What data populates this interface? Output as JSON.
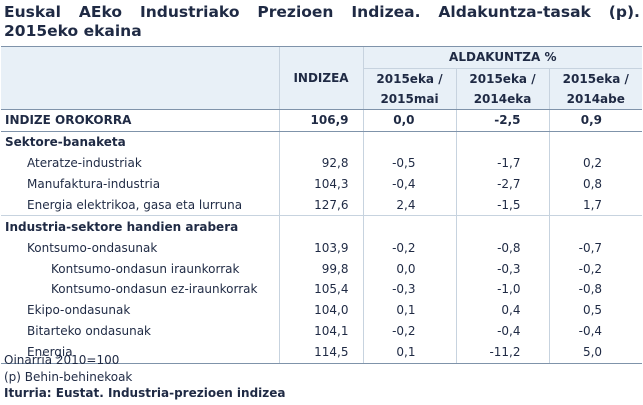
{
  "title": {
    "words": [
      "Euskal",
      "AEko",
      "Industriako",
      "Prezioen",
      "Indizea.",
      "Aldakuntza-tasak",
      "(p)."
    ],
    "line2": "2015eko ekaina"
  },
  "header": {
    "indizea": "INDIZEA",
    "aldakuntza": "ALDAKUNTZA %",
    "col1": [
      "2015eka /",
      "2015mai"
    ],
    "col2": [
      "2015eka /",
      "2014eka"
    ],
    "col3": [
      "2015eka /",
      "2014abe"
    ]
  },
  "total": {
    "label": "INDIZE OROKORRA",
    "ind": "106,9",
    "c1": "0,0",
    "c2": "-2,5",
    "c3": "0,9"
  },
  "sections": [
    {
      "title": "Sektore-banaketa",
      "rows": [
        {
          "label": "Ateratze-industriak",
          "level": 1,
          "ind": "92,8",
          "c1": "-0,5",
          "c2": "-1,7",
          "c3": "0,2"
        },
        {
          "label": "Manufaktura-industria",
          "level": 1,
          "ind": "104,3",
          "c1": "-0,4",
          "c2": "-2,7",
          "c3": "0,8"
        },
        {
          "label": "Energia elektrikoa, gasa eta lurruna",
          "level": 1,
          "ind": "127,6",
          "c1": "2,4",
          "c2": "-1,5",
          "c3": "1,7"
        }
      ]
    },
    {
      "title": "Industria-sektore handien arabera",
      "rows": [
        {
          "label": "Kontsumo-ondasunak",
          "level": 1,
          "ind": "103,9",
          "c1": "-0,2",
          "c2": "-0,8",
          "c3": "-0,7"
        },
        {
          "label": "Kontsumo-ondasun iraunkorrak",
          "level": 2,
          "ind": "99,8",
          "c1": "0,0",
          "c2": "-0,3",
          "c3": "-0,2"
        },
        {
          "label": "Kontsumo-ondasun ez-iraunkorrak",
          "level": 2,
          "ind": "105,4",
          "c1": "-0,3",
          "c2": "-1,0",
          "c3": "-0,8"
        },
        {
          "label": "Ekipo-ondasunak",
          "level": 1,
          "ind": "104,0",
          "c1": "0,1",
          "c2": "0,4",
          "c3": "0,5"
        },
        {
          "label": "Bitarteko ondasunak",
          "level": 1,
          "ind": "104,1",
          "c1": "-0,2",
          "c2": "-0,4",
          "c3": "-0,4"
        },
        {
          "label": "Energia",
          "level": 1,
          "ind": "114,5",
          "c1": "0,1",
          "c2": "-11,2",
          "c3": "5,0"
        }
      ]
    }
  ],
  "footer": {
    "base": "Oinarria 2010=100",
    "note": "(p) Behin-behinekoak",
    "source": "Iturria: Eustat. Industria-prezioen indizea"
  }
}
